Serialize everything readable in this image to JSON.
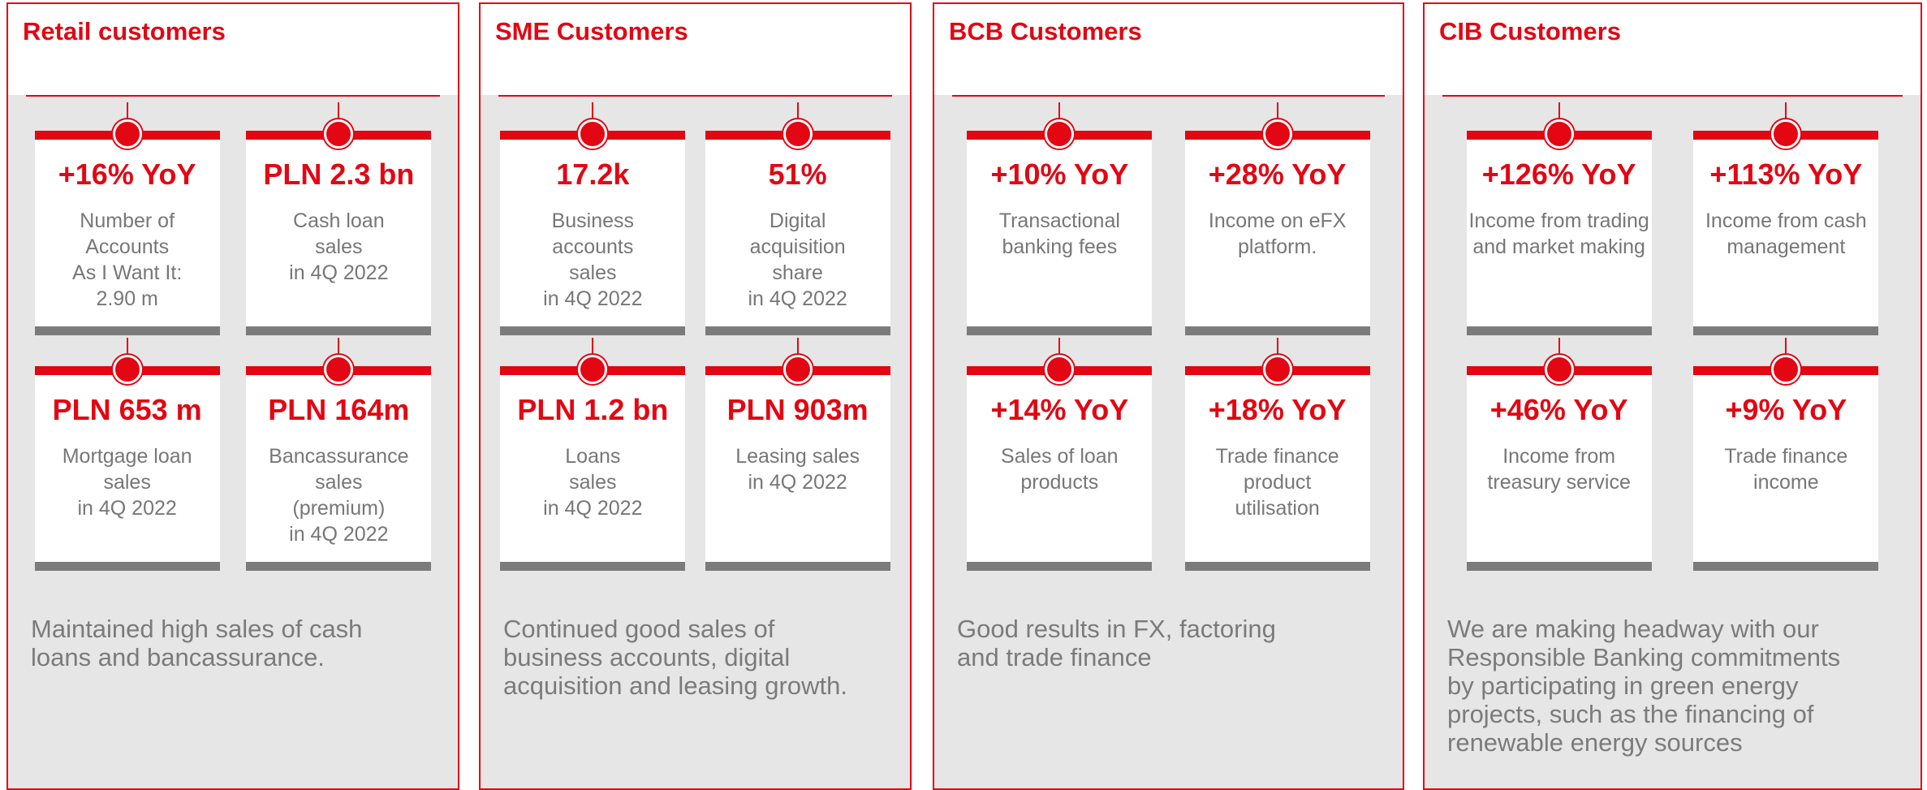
{
  "panels": [
    {
      "title": "Retail customers",
      "cards": [
        {
          "value": "+16% YoY",
          "description": [
            "Number of",
            "Accounts",
            "As I Want It:",
            "2.90 m"
          ]
        },
        {
          "value": "PLN 2.3 bn",
          "description": [
            "Cash loan",
            "sales",
            "in 4Q 2022"
          ]
        },
        {
          "value": "PLN 653 m",
          "description": [
            "Mortgage loan",
            "sales",
            "in 4Q 2022"
          ]
        },
        {
          "value": "PLN 164m",
          "description": [
            "Bancassurance",
            "sales",
            "(premium)",
            "in 4Q 2022"
          ]
        }
      ],
      "summary": [
        "Maintained high sales of cash",
        "loans and bancassurance."
      ]
    },
    {
      "title": "SME Customers",
      "cards": [
        {
          "value": "17.2k",
          "description": [
            "Business",
            "accounts",
            "sales",
            "in 4Q 2022"
          ]
        },
        {
          "value": "51%",
          "description": [
            "Digital",
            "acquisition",
            "share",
            "in 4Q 2022"
          ]
        },
        {
          "value": "PLN 1.2 bn",
          "description": [
            "Loans",
            "sales",
            "in 4Q 2022"
          ]
        },
        {
          "value": "PLN 903m",
          "description": [
            "Leasing sales",
            "in 4Q 2022"
          ]
        }
      ],
      "summary": [
        "Continued good sales of",
        "business accounts, digital",
        "acquisition and leasing growth."
      ]
    },
    {
      "title": "BCB Customers",
      "cards": [
        {
          "value": "+10% YoY",
          "description": [
            "Transactional",
            "banking fees"
          ]
        },
        {
          "value": "+28% YoY",
          "description": [
            "Income on eFX",
            "platform."
          ]
        },
        {
          "value": "+14% YoY",
          "description": [
            "Sales of loan",
            "products"
          ]
        },
        {
          "value": "+18% YoY",
          "description": [
            "Trade finance",
            "product",
            "utilisation"
          ]
        }
      ],
      "summary": [
        "Good results in FX, factoring",
        "and trade finance"
      ]
    },
    {
      "title": "CIB Customers",
      "cards": [
        {
          "value": "+126% YoY",
          "description": [
            "Income from trading",
            "and market making"
          ]
        },
        {
          "value": "+113% YoY",
          "description": [
            "Income from cash",
            "management"
          ]
        },
        {
          "value": "+46% YoY",
          "description": [
            "Income from",
            "treasury service"
          ]
        },
        {
          "value": "+9% YoY",
          "description": [
            "Trade finance",
            "income"
          ]
        }
      ],
      "summary": [
        "We are making headway with our",
        "Responsible Banking commitments",
        "by participating in green energy",
        "projects, such as the financing of",
        "renewable energy sources"
      ]
    }
  ]
}
